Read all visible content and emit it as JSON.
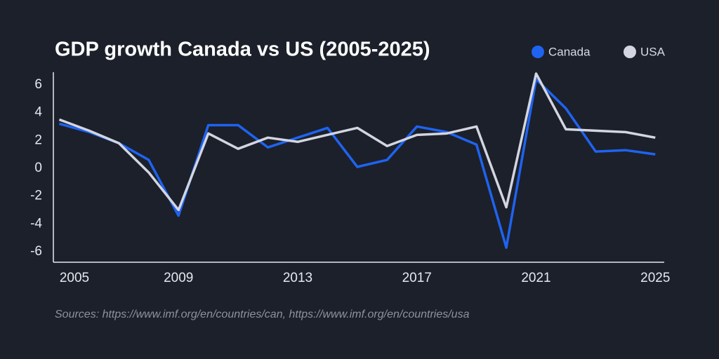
{
  "chart_data": {
    "type": "line",
    "title": "GDP growth Canada vs US (2005-2025)",
    "source": "Sources: https://www.imf.org/en/countries/can, https://www.imf.org/en/countries/usa",
    "x": [
      2005,
      2006,
      2007,
      2008,
      2009,
      2010,
      2011,
      2012,
      2013,
      2014,
      2015,
      2016,
      2017,
      2018,
      2019,
      2020,
      2021,
      2022,
      2023,
      2024,
      2025
    ],
    "series": [
      {
        "name": "Canada",
        "color": "#1f63f0",
        "values": [
          3.2,
          2.6,
          1.8,
          0.6,
          -3.4,
          3.1,
          3.1,
          1.5,
          2.2,
          2.9,
          0.1,
          0.6,
          3.0,
          2.6,
          1.7,
          -5.7,
          6.4,
          4.3,
          1.2,
          1.3,
          1.0
        ]
      },
      {
        "name": "USA",
        "color": "#d3d5e0",
        "values": [
          3.5,
          2.7,
          1.8,
          -0.3,
          -3.0,
          2.5,
          1.4,
          2.2,
          1.9,
          2.4,
          2.9,
          1.6,
          2.4,
          2.5,
          3.0,
          -2.8,
          6.8,
          2.8,
          2.7,
          2.6,
          2.2
        ]
      }
    ],
    "xlim": [
      2004.8,
      2025.3
    ],
    "xticks": [
      2005,
      2009,
      2013,
      2017,
      2021,
      2025
    ],
    "ylim": [
      -6.75,
      6.9
    ],
    "yticks": [
      -6,
      -4,
      -2,
      0,
      2,
      4,
      6
    ],
    "grid": false
  }
}
